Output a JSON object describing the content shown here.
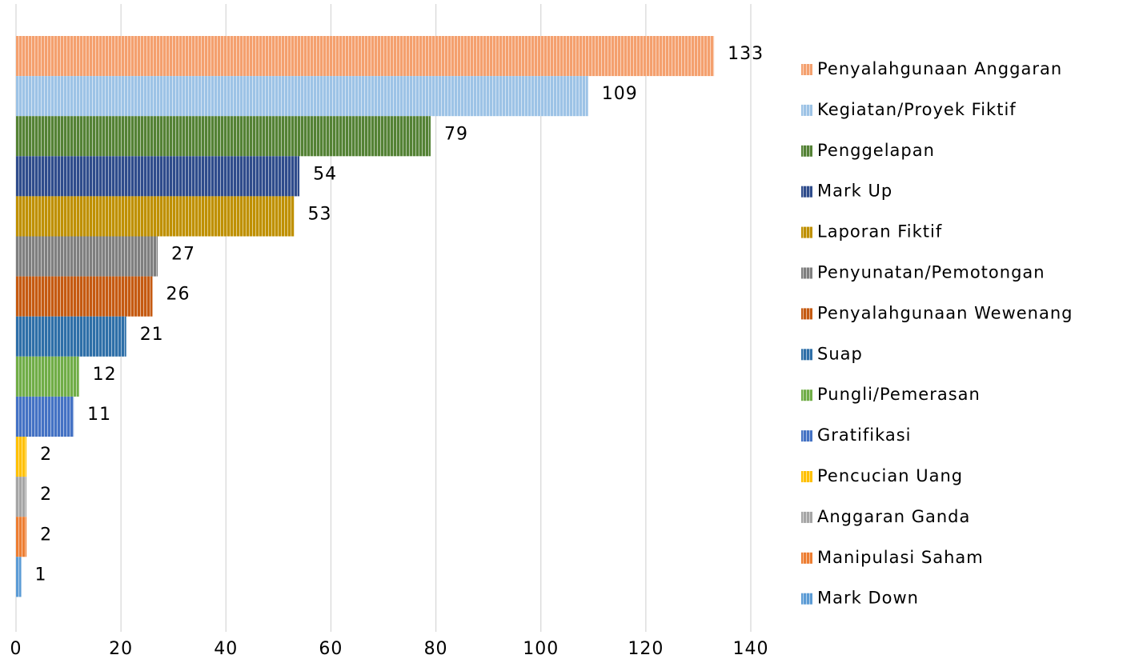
{
  "chart_data": {
    "type": "bar",
    "orientation": "horizontal",
    "categories": [
      null
    ],
    "series": [
      {
        "name": "Penyalahgunaan Anggaran",
        "color": "#f4a06e",
        "values": [
          133
        ]
      },
      {
        "name": "Kegiatan/Proyek Fiktif",
        "color": "#9dc3e6",
        "values": [
          109
        ]
      },
      {
        "name": "Penggelapan",
        "color": "#548235",
        "values": [
          79
        ]
      },
      {
        "name": "Mark Up",
        "color": "#2f4c8c",
        "values": [
          54
        ]
      },
      {
        "name": "Laporan Fiktif",
        "color": "#bf9000",
        "values": [
          53
        ]
      },
      {
        "name": "Penyunatan/Pemotongan",
        "color": "#7f7f7f",
        "values": [
          27
        ]
      },
      {
        "name": "Penyalahgunaan Wewenang",
        "color": "#c55a11",
        "values": [
          26
        ]
      },
      {
        "name": "Suap",
        "color": "#2e6fa8",
        "values": [
          21
        ]
      },
      {
        "name": "Pungli/Pemerasan",
        "color": "#70ad47",
        "values": [
          12
        ]
      },
      {
        "name": "Gratifikasi",
        "color": "#4472c4",
        "values": [
          11
        ]
      },
      {
        "name": "Pencucian Uang",
        "color": "#ffc000",
        "values": [
          2
        ]
      },
      {
        "name": "Anggaran Ganda",
        "color": "#a5a5a5",
        "values": [
          2
        ]
      },
      {
        "name": "Manipulasi Saham",
        "color": "#ed7d31",
        "values": [
          2
        ]
      },
      {
        "name": "Mark Down",
        "color": "#5b9bd5",
        "values": [
          1
        ]
      }
    ],
    "xlim": [
      0,
      140
    ],
    "xticks": [
      0,
      20,
      40,
      60,
      80,
      100,
      120,
      140
    ],
    "grid": true,
    "legend": "right"
  }
}
